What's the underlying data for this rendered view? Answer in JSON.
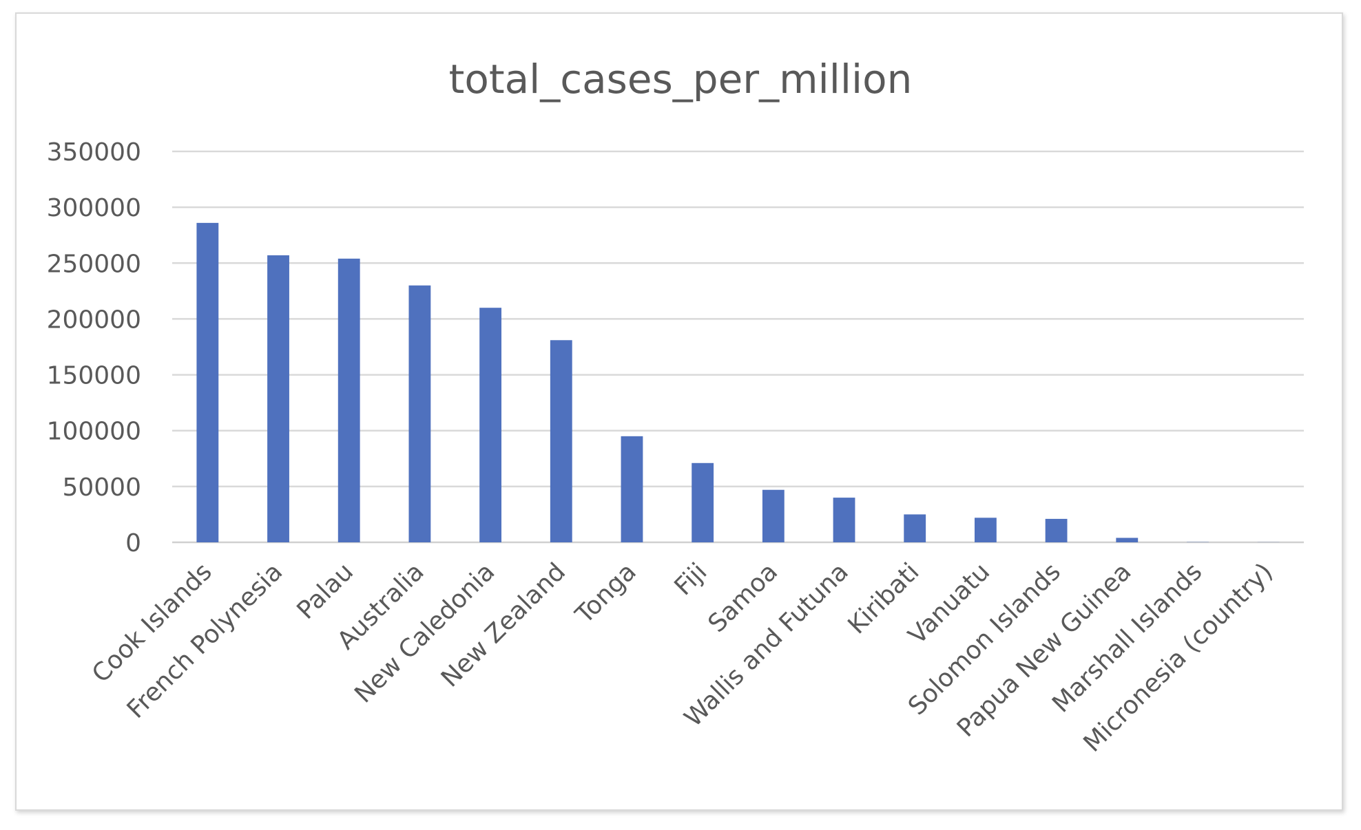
{
  "chart_data": {
    "type": "bar",
    "title": "total_cases_per_million",
    "xlabel": "",
    "ylabel": "",
    "ylim": [
      0,
      350000
    ],
    "yticks": [
      0,
      50000,
      100000,
      150000,
      200000,
      250000,
      300000,
      350000
    ],
    "ytick_labels": [
      "0",
      "50000",
      "100000",
      "150000",
      "200000",
      "250000",
      "300000",
      "350000"
    ],
    "grid": true,
    "legend": "none",
    "bar_color": "#4f71be",
    "categories": [
      "Cook Islands",
      "French Polynesia",
      "Palau",
      "Australia",
      "New Caledonia",
      "New Zealand",
      "Tonga",
      "Fiji",
      "Samoa",
      "Wallis and Futuna",
      "Kiribati",
      "Vanuatu",
      "Solomon Islands",
      "Papua New Guinea",
      "Marshall Islands",
      "Micronesia (country)"
    ],
    "values": [
      286000,
      257000,
      254000,
      230000,
      210000,
      181000,
      95000,
      71000,
      47000,
      40000,
      25000,
      22000,
      21000,
      4000,
      200,
      100
    ]
  }
}
